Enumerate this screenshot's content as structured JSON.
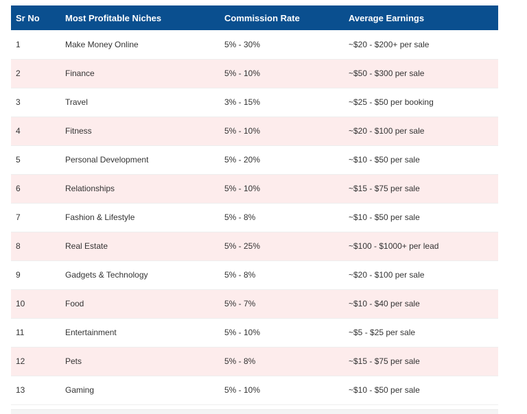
{
  "table": {
    "headers": {
      "sr_no": "Sr No",
      "niche": "Most Profitable Niches",
      "commission": "Commission Rate",
      "earnings": "Average Earnings"
    },
    "rows": [
      {
        "sr": "1",
        "niche": "Make Money Online",
        "commission": "5% - 30%",
        "earnings": "~$20 - $200+ per sale"
      },
      {
        "sr": "2",
        "niche": "Finance",
        "commission": "5% - 10%",
        "earnings": "~$50 - $300 per sale"
      },
      {
        "sr": "3",
        "niche": "Travel",
        "commission": "3% - 15%",
        "earnings": "~$25 - $50 per booking"
      },
      {
        "sr": "4",
        "niche": "Fitness",
        "commission": "5% - 10%",
        "earnings": "~$20 - $100 per sale"
      },
      {
        "sr": "5",
        "niche": "Personal Development",
        "commission": "5% - 20%",
        "earnings": "~$10 - $50 per sale"
      },
      {
        "sr": "6",
        "niche": "Relationships",
        "commission": "5% - 10%",
        "earnings": "~$15 - $75 per sale"
      },
      {
        "sr": "7",
        "niche": "Fashion & Lifestyle",
        "commission": "5% - 8%",
        "earnings": "~$10 - $50 per sale"
      },
      {
        "sr": "8",
        "niche": "Real Estate",
        "commission": "5% - 25%",
        "earnings": "~$100 - $1000+ per lead"
      },
      {
        "sr": "9",
        "niche": "Gadgets & Technology",
        "commission": "5% - 8%",
        "earnings": "~$20 - $100 per sale"
      },
      {
        "sr": "10",
        "niche": "Food",
        "commission": "5% - 7%",
        "earnings": "~$10 - $40 per sale"
      },
      {
        "sr": "11",
        "niche": "Entertainment",
        "commission": "5% - 10%",
        "earnings": "~$5 - $25 per sale"
      },
      {
        "sr": "12",
        "niche": "Pets",
        "commission": "5% - 8%",
        "earnings": "~$15 - $75 per sale"
      },
      {
        "sr": "13",
        "niche": "Gaming",
        "commission": "5% - 10%",
        "earnings": "~$10 - $50 per sale"
      }
    ]
  },
  "colors": {
    "header_bg": "#0a4f8f",
    "header_text": "#ffffff",
    "shaded_row": "#fdecec"
  }
}
